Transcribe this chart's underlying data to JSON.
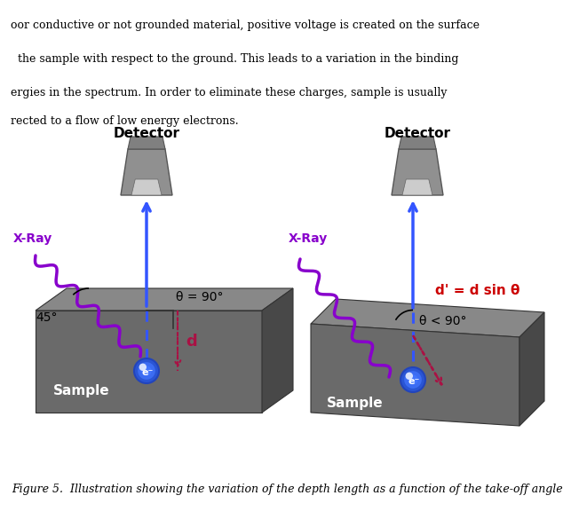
{
  "bg_color": "#ffffff",
  "fig_width": 6.15,
  "fig_height": 5.74,
  "caption": "Figure 5.  Illustration showing the variation of the depth length as a function of the take-off angle",
  "caption_fontsize": 9,
  "left_diagram": {
    "label_xray": "X-Ray",
    "label_detector": "Detector",
    "label_sample": "Sample",
    "label_angle": "45°",
    "label_theta": "θ = 90°",
    "label_d": "d",
    "label_electron": "e⁻"
  },
  "right_diagram": {
    "label_xray": "X-Ray",
    "label_detector": "Detector",
    "label_sample": "Sample",
    "label_theta": "θ < 90°",
    "label_dprime": "d' = d sin θ",
    "label_electron": "e⁻"
  },
  "colors": {
    "purple": "#8800CC",
    "blue": "#3355FF",
    "red_dark": "#AA1144",
    "gray_dark": "#505050",
    "gray_medium": "#787878",
    "gray_light": "#AAAAAA",
    "gray_sample_face": "#6A6A6A",
    "gray_sample_top": "#909090",
    "gray_sample_side": "#444444",
    "white": "#FFFFFF",
    "black": "#000000"
  },
  "text_top": [
    "oor conductive or not grounded material, positive voltage is created on the surface",
    "  the sample with respect to the ground. This leads to a variation in the binding",
    "ergies in the spectrum. In order to eliminate these charges, sample is usually",
    "rected to a flow of low energy electrons."
  ]
}
